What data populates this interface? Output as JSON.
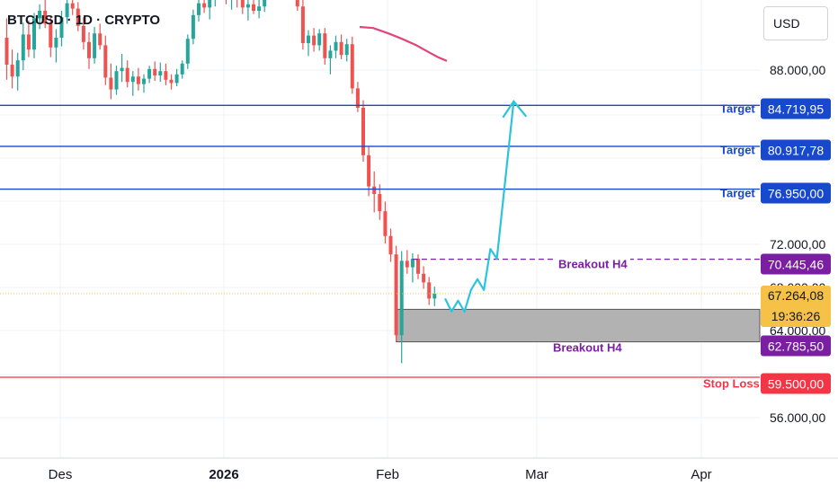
{
  "header": {
    "symbol": "BTCUSD · 1D · CRYPTO",
    "currency": "USD"
  },
  "colors": {
    "up": "#26a69a",
    "down": "#ef5350",
    "ma": "#e0457b",
    "target": "#1848cc",
    "breakout": "#7b1fa2",
    "stop": "#f23645",
    "current": "#f5c247",
    "arrow": "#2cc4dc",
    "zone": "#b2b2b2",
    "grid": "#eef0f4",
    "text": "#131722"
  },
  "chart_data": {
    "type": "candlestick",
    "symbol": "BTCUSD",
    "timeframe": "1D",
    "y_axis": {
      "ticks": [
        "88.000,00",
        "72.000,00",
        "68.000,00",
        "64.000,00",
        "56.000,00"
      ],
      "ylim": [
        53000,
        96500
      ]
    },
    "x_axis": {
      "ticks": [
        {
          "label": "Des",
          "bold": false
        },
        {
          "label": "2026",
          "bold": true
        },
        {
          "label": "Feb",
          "bold": false
        },
        {
          "label": "Mar",
          "bold": false
        },
        {
          "label": "Apr",
          "bold": false
        }
      ]
    },
    "candles": [
      [
        91000,
        92800,
        87100,
        88500
      ],
      [
        88500,
        89900,
        86300,
        87400
      ],
      [
        87400,
        89600,
        86100,
        88900
      ],
      [
        88900,
        92400,
        88000,
        91300
      ],
      [
        91300,
        92600,
        89200,
        89900
      ],
      [
        89900,
        93300,
        89100,
        92800
      ],
      [
        92800,
        94100,
        91800,
        93500
      ],
      [
        93500,
        94600,
        91900,
        92300
      ],
      [
        92300,
        93000,
        89200,
        90100
      ],
      [
        90100,
        91800,
        88700,
        91000
      ],
      [
        91000,
        93500,
        90200,
        92900
      ],
      [
        92900,
        94900,
        92300,
        94200
      ],
      [
        94200,
        95400,
        93100,
        93700
      ],
      [
        93700,
        94300,
        91600,
        92100
      ],
      [
        92100,
        92900,
        89900,
        90600
      ],
      [
        90600,
        91500,
        88100,
        89100
      ],
      [
        89100,
        92000,
        88600,
        91400
      ],
      [
        91400,
        92300,
        89900,
        90300
      ],
      [
        90300,
        91200,
        86600,
        87300
      ],
      [
        87300,
        88600,
        85300,
        86200
      ],
      [
        86200,
        88400,
        85700,
        87900
      ],
      [
        87900,
        89500,
        86900,
        88200
      ],
      [
        88200,
        88900,
        86400,
        86900
      ],
      [
        86900,
        87900,
        85600,
        87400
      ],
      [
        87400,
        88200,
        86100,
        86700
      ],
      [
        86700,
        87600,
        85900,
        87200
      ],
      [
        87200,
        88400,
        86800,
        88100
      ],
      [
        88100,
        88800,
        87000,
        87500
      ],
      [
        87500,
        88700,
        86900,
        87900
      ],
      [
        87900,
        88600,
        86600,
        87100
      ],
      [
        87100,
        87600,
        86200,
        86800
      ],
      [
        86800,
        88100,
        86500,
        87600
      ],
      [
        87600,
        88900,
        87200,
        88600
      ],
      [
        88600,
        91300,
        88100,
        90900
      ],
      [
        90900,
        93600,
        90400,
        93100
      ],
      [
        93100,
        94600,
        92500,
        94200
      ],
      [
        94200,
        95200,
        93300,
        93800
      ],
      [
        93800,
        94900,
        92700,
        94500
      ],
      [
        94500,
        96300,
        93900,
        95700
      ],
      [
        95700,
        97200,
        94900,
        96500
      ],
      [
        96500,
        97300,
        94100,
        94700
      ],
      [
        94700,
        95600,
        93600,
        95100
      ],
      [
        95100,
        95900,
        93800,
        94600
      ],
      [
        94600,
        95300,
        93200,
        93800
      ],
      [
        93800,
        94600,
        92600,
        94100
      ],
      [
        94100,
        95000,
        93200,
        93500
      ],
      [
        93500,
        94500,
        92800,
        93900
      ],
      [
        93900,
        96100,
        93400,
        95800
      ],
      [
        95800,
        97500,
        95100,
        97100
      ],
      [
        97100,
        97800,
        95900,
        96300
      ],
      [
        96300,
        96900,
        95200,
        95800
      ],
      [
        95800,
        96900,
        95000,
        96500
      ],
      [
        96500,
        97300,
        95500,
        95900
      ],
      [
        95900,
        96600,
        93500,
        93900
      ],
      [
        93900,
        95100,
        89900,
        90500
      ],
      [
        90500,
        91700,
        89300,
        91200
      ],
      [
        91200,
        91900,
        89700,
        90300
      ],
      [
        90300,
        91800,
        89800,
        91400
      ],
      [
        91400,
        91900,
        88500,
        89100
      ],
      [
        89100,
        90300,
        87600,
        89800
      ],
      [
        89800,
        91200,
        89100,
        90600
      ],
      [
        90600,
        91300,
        89000,
        89400
      ],
      [
        89400,
        90900,
        88800,
        90400
      ],
      [
        90400,
        91100,
        85800,
        86300
      ],
      [
        86300,
        86900,
        84100,
        84500
      ],
      [
        84500,
        85200,
        79500,
        80100
      ],
      [
        80100,
        80900,
        76300,
        77200
      ],
      [
        77200,
        78600,
        74800,
        76500
      ],
      [
        76500,
        77400,
        74100,
        74900
      ],
      [
        74900,
        75800,
        71900,
        72600
      ],
      [
        72600,
        73300,
        70200,
        70900
      ],
      [
        70900,
        71700,
        62800,
        63400
      ],
      [
        63400,
        71200,
        60800,
        70300
      ],
      [
        70300,
        71300,
        69100,
        69700
      ],
      [
        69700,
        71000,
        68300,
        70500
      ],
      [
        70500,
        70900,
        68600,
        69100
      ],
      [
        69100,
        69800,
        67700,
        68300
      ],
      [
        68300,
        68800,
        66200,
        66800
      ],
      [
        66800,
        67900,
        66100,
        67264
      ]
    ],
    "moving_average": [
      [
        90800,
        92000
      ],
      [
        91200,
        91900
      ],
      [
        91700,
        91400
      ],
      [
        92050,
        90900
      ],
      [
        92500,
        90300
      ],
      [
        92850,
        89650
      ],
      [
        93050,
        89200
      ],
      [
        93350,
        88850
      ]
    ],
    "levels": [
      {
        "label": "Target",
        "price": 84719.95,
        "price_label": "84.719,95",
        "style": "target"
      },
      {
        "label": "Target",
        "price": 80917.78,
        "price_label": "80.917,78",
        "style": "target"
      },
      {
        "label": "Target",
        "price": 76950.0,
        "price_label": "76.950,00",
        "style": "target"
      },
      {
        "label": "Breakout H4",
        "price": 70445.46,
        "price_label": "70.445,46",
        "style": "breakout"
      },
      {
        "label": "Breakout H4",
        "price": 62785.5,
        "price_label": "62.785,50",
        "style": "breakout"
      },
      {
        "label": "Stop Loss",
        "price": 59500.0,
        "price_label": "59.500,00",
        "style": "stop"
      }
    ],
    "current_price": {
      "price": 67264.08,
      "price_label": "67.264,08",
      "countdown": "19:36:26"
    },
    "zone": {
      "top": 65800,
      "bottom": 62785.5
    },
    "projection": [
      [
        66800,
        0
      ],
      [
        65600,
        1
      ],
      [
        66600,
        2
      ],
      [
        65600,
        3
      ],
      [
        67600,
        4
      ],
      [
        68600,
        5
      ],
      [
        67600,
        6
      ],
      [
        71400,
        7
      ],
      [
        70500,
        8
      ],
      [
        85100,
        10.6
      ]
    ]
  }
}
